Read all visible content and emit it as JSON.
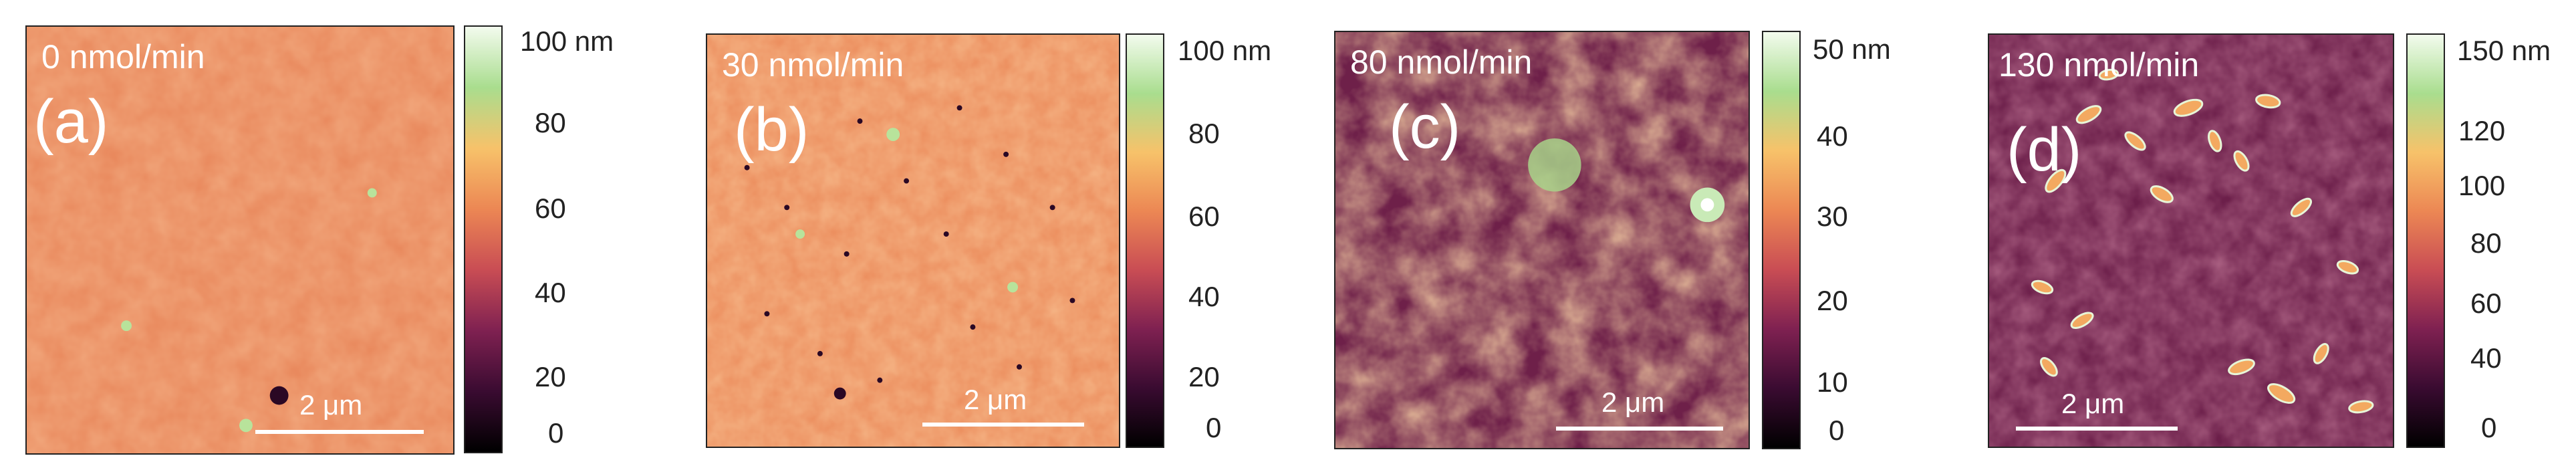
{
  "colorbar_gradient": [
    "#f3fbee",
    "#a9dd8e",
    "#f7c26a",
    "#ec8754",
    "#c94d54",
    "#7f2151",
    "#3a0b31",
    "#000000"
  ],
  "panels": [
    {
      "rate": "0 nmol/min",
      "letter": "(a)",
      "scalebar": "2 μm",
      "colorbar_top": "100 nm",
      "colorbar_ticks": [
        "80",
        "60",
        "40",
        "20",
        "0"
      ]
    },
    {
      "rate": "30 nmol/min",
      "letter": "(b)",
      "scalebar": "2 μm",
      "colorbar_top": "100 nm",
      "colorbar_ticks": [
        "80",
        "60",
        "40",
        "20",
        "0"
      ]
    },
    {
      "rate": "80 nmol/min",
      "letter": "(c)",
      "scalebar": "2 μm",
      "colorbar_top": "50 nm",
      "colorbar_ticks": [
        "40",
        "30",
        "20",
        "10",
        "0"
      ]
    },
    {
      "rate": "130 nmol/min",
      "letter": "(d)",
      "scalebar": "2 μm",
      "colorbar_top": "150 nm",
      "colorbar_ticks": [
        "120",
        "100",
        "80",
        "60",
        "40",
        "0"
      ]
    }
  ]
}
